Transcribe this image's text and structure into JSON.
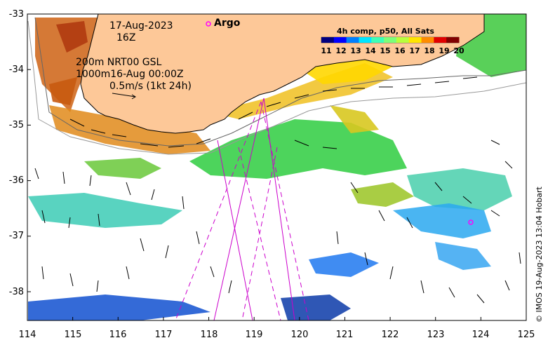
{
  "map": {
    "date_label": "17-Aug-2023",
    "time_label": "16Z",
    "argo_label": "Argo",
    "current_lines": [
      "200m  NRT00 GSL",
      "1000m16-Aug 00:00Z",
      "0.5m/s (1kt 24h)"
    ],
    "credit": "© IMOS 19-Aug-2023 13:04 Hobart",
    "x_ticks": [
      "114",
      "115",
      "116",
      "117",
      "118",
      "119",
      "120",
      "121",
      "122",
      "123",
      "124",
      "125"
    ],
    "y_ticks": [
      "-33",
      "-34",
      "-35",
      "-36",
      "-37",
      "-38"
    ],
    "extent": {
      "lon": [
        114,
        125
      ],
      "lat": [
        -38.5,
        -33
      ]
    }
  },
  "colorbar": {
    "title": "4h comp, p50, All Sats",
    "ticks": [
      "11",
      "12",
      "13",
      "14",
      "15",
      "16",
      "17",
      "18",
      "19",
      "20"
    ],
    "colors": [
      "#00007f",
      "#0000ff",
      "#0080ff",
      "#00e5ff",
      "#3dffb8",
      "#7cff7a",
      "#b8ff3d",
      "#ffe500",
      "#ff8c00",
      "#e00000",
      "#800000"
    ]
  },
  "colors": {
    "land": "#fdc898",
    "track": "#cc00cc",
    "argo": "#ff00ff"
  }
}
